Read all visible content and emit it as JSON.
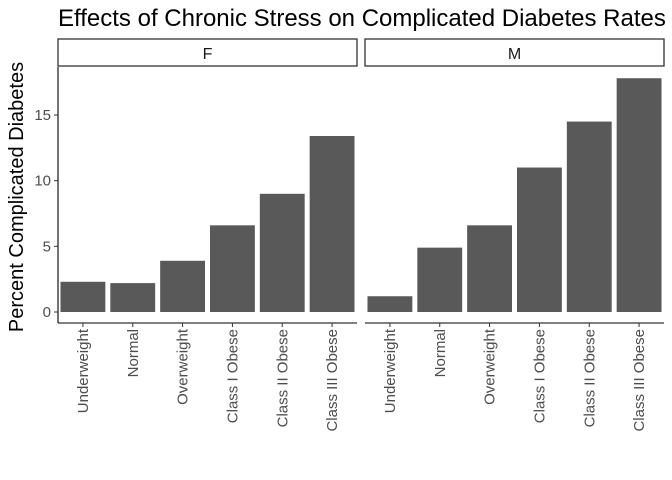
{
  "chart_data": {
    "type": "bar",
    "title": "Effects of Chronic Stress on Complicated Diabetes Rates",
    "ylabel": "Percent Complicated Diabetes",
    "xlabel": "",
    "categories": [
      "Underweight",
      "Normal",
      "Overweight",
      "Class I Obese",
      "Class II Obese",
      "Class III Obese"
    ],
    "ylim": [
      0,
      19
    ],
    "yticks": [
      0,
      5,
      10,
      15
    ],
    "grid": false,
    "bar_color": "#595959",
    "facets": [
      {
        "label": "F",
        "values": [
          2.3,
          2.2,
          3.9,
          6.6,
          9.0,
          13.4
        ]
      },
      {
        "label": "M",
        "values": [
          1.2,
          4.9,
          6.6,
          11.0,
          14.5,
          17.8
        ]
      }
    ]
  }
}
